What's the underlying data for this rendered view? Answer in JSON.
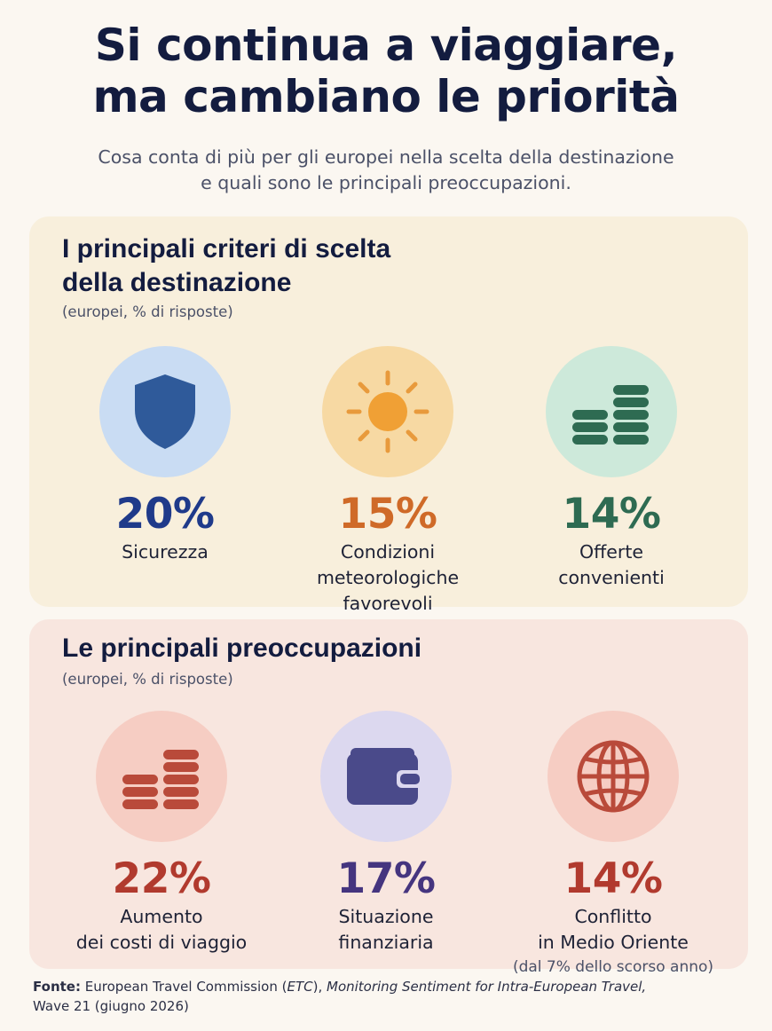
{
  "header": {
    "title_line1": "Si continua a viaggiare,",
    "title_line2": "ma cambiano le priorità",
    "subtitle_line1": "Cosa conta di più per gli europei nella scelta della destinazione",
    "subtitle_line2": "e quali sono le principali preoccupazioni."
  },
  "criteria": {
    "title_line1": "I principali criteri di scelta",
    "title_line2": "della destinazione",
    "note": "(europei, % di risposte)",
    "items": [
      {
        "icon": "shield-icon",
        "value": "20%",
        "label_lines": [
          "Sicurezza"
        ],
        "color": "#1f3a8a",
        "circle": "#c9dcf3"
      },
      {
        "icon": "sun-icon",
        "value": "15%",
        "label_lines": [
          "Condizioni",
          "meteorologiche",
          "favorevoli"
        ],
        "color": "#cf6a28",
        "circle": "#f7d9a3"
      },
      {
        "icon": "coins-icon",
        "value": "14%",
        "label_lines": [
          "Offerte",
          "convenienti"
        ],
        "color": "#2e6b52",
        "circle": "#cde9da"
      }
    ]
  },
  "concerns": {
    "title": "Le principali preoccupazioni",
    "note": "(europei, % di risposte)",
    "items": [
      {
        "icon": "coins-icon",
        "value": "22%",
        "label_lines": [
          "Aumento",
          "dei costi di viaggio"
        ],
        "sublabel": "",
        "color": "#b13a2e",
        "circle": "#f6cdc3"
      },
      {
        "icon": "wallet-icon",
        "value": "17%",
        "label_lines": [
          "Situazione",
          "finanziaria"
        ],
        "sublabel": "",
        "color": "#45357f",
        "circle": "#dcd8ef"
      },
      {
        "icon": "globe-icon",
        "value": "14%",
        "label_lines": [
          "Conflitto",
          "in Medio Oriente"
        ],
        "sublabel": "(dal 7% dello scorso anno)",
        "color": "#b13a2e",
        "circle": "#f6cdc3"
      }
    ]
  },
  "source": {
    "prefix": "Fonte:",
    "org": "European Travel Commission (",
    "org_abbr": "ETC",
    "org_close": "),",
    "report": "Monitoring Sentiment for Intra-European Travel,",
    "wave": "Wave 21 (giugno 2026)"
  }
}
